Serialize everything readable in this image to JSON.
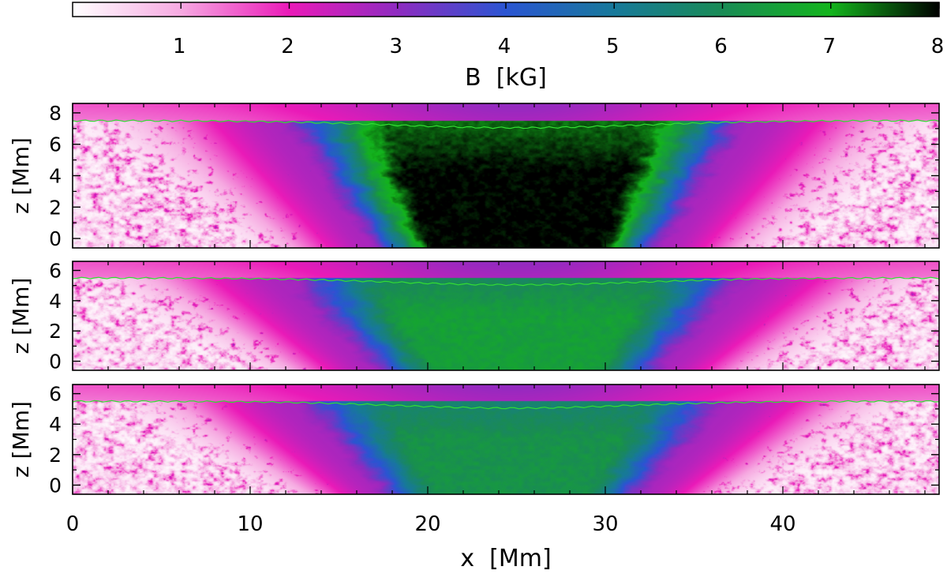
{
  "chart_data": {
    "type": "heatmap",
    "colorbar": {
      "label": "B  [kG]",
      "range": [
        0,
        8
      ],
      "tick_labels": [
        "1",
        "2",
        "3",
        "4",
        "5",
        "6",
        "7",
        "8"
      ],
      "tick_values": [
        1,
        2,
        3,
        4,
        5,
        6,
        7,
        8
      ],
      "colormap": [
        {
          "value": 0,
          "color": "#ffffff"
        },
        {
          "value": 1,
          "color": "#f6a9e1"
        },
        {
          "value": 2,
          "color": "#ea1ab8"
        },
        {
          "value": 3,
          "color": "#8e2bc0"
        },
        {
          "value": 4,
          "color": "#2a55d2"
        },
        {
          "value": 5,
          "color": "#17799a"
        },
        {
          "value": 6,
          "color": "#198b55"
        },
        {
          "value": 7,
          "color": "#13b41c"
        },
        {
          "value": 8,
          "color": "#000000"
        }
      ]
    },
    "x_axis": {
      "label": "x  [Mm]",
      "range": [
        0,
        48.8
      ],
      "tick_labels": [
        "0",
        "10",
        "20",
        "30",
        "40"
      ],
      "tick_values": [
        0,
        10,
        20,
        30,
        40
      ]
    },
    "panels": [
      {
        "ylabel": "z  [Mm]",
        "ylim": [
          -0.6,
          8.6
        ],
        "y_tick_labels": [
          "0",
          "2",
          "4",
          "6",
          "8"
        ],
        "y_tick_values": [
          0,
          2,
          4,
          6,
          8
        ],
        "tau_contour_z": 7.5,
        "umbra_x": [
          17,
          33
        ],
        "core_kG": 8
      },
      {
        "ylabel": "z  [Mm]",
        "ylim": [
          -0.6,
          6.6
        ],
        "y_tick_labels": [
          "0",
          "2",
          "4",
          "6"
        ],
        "y_tick_values": [
          0,
          2,
          4,
          6
        ],
        "tau_contour_z": 5.5,
        "umbra_x": [
          17,
          33
        ],
        "core_kG": 6.5
      },
      {
        "ylabel": "z  [Mm]",
        "ylim": [
          -0.6,
          6.6
        ],
        "y_tick_labels": [
          "0",
          "2",
          "4",
          "6"
        ],
        "y_tick_values": [
          0,
          2,
          4,
          6
        ],
        "tau_contour_z": 5.5,
        "umbra_x": [
          17.5,
          32
        ],
        "core_kG": 6.2
      }
    ],
    "contour_color": "#33dd33"
  }
}
